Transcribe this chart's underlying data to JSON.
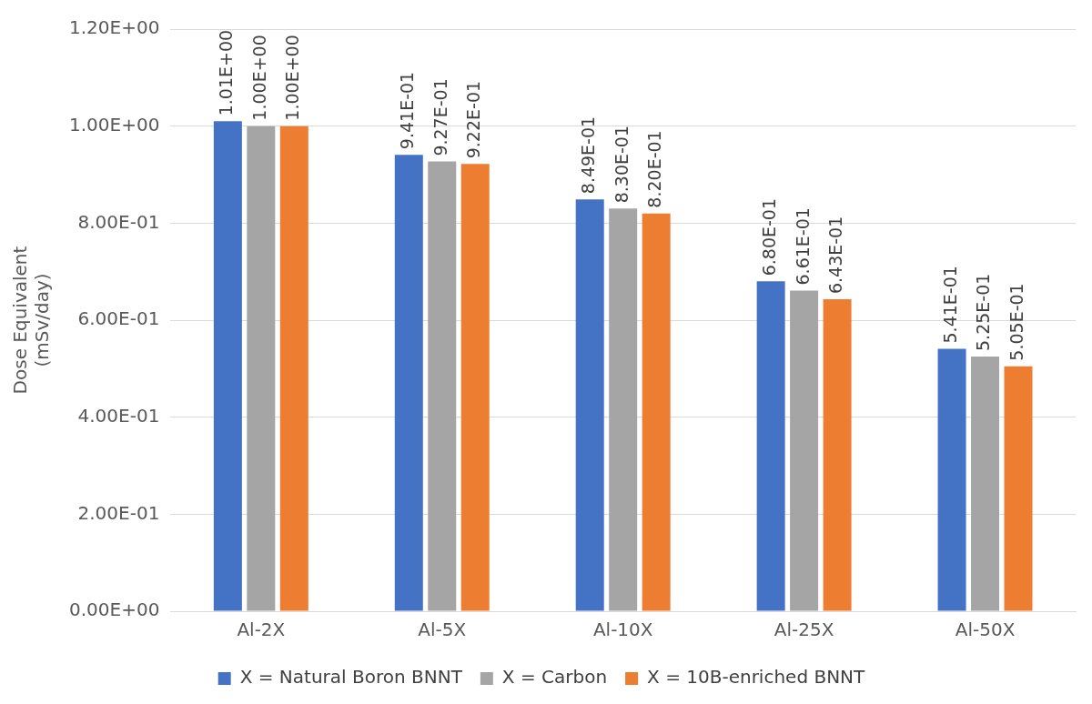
{
  "chart_data": {
    "type": "bar",
    "ylabel": "Dose Equivalent\n(mSv/day)",
    "categories": [
      "Al-2X",
      "Al-5X",
      "Al-10X",
      "Al-25X",
      "Al-50X"
    ],
    "series": [
      {
        "name": "X = Natural Boron BNNT",
        "color": "#4472c4",
        "values": [
          1.01,
          0.941,
          0.849,
          0.68,
          0.541
        ],
        "value_labels": [
          "1.01E+00",
          "9.41E-01",
          "8.49E-01",
          "6.80E-01",
          "5.41E-01"
        ]
      },
      {
        "name": "X = Carbon",
        "color": "#a5a5a5",
        "values": [
          1.0,
          0.927,
          0.83,
          0.661,
          0.525
        ],
        "value_labels": [
          "1.00E+00",
          "9.27E-01",
          "8.30E-01",
          "6.61E-01",
          "5.25E-01"
        ]
      },
      {
        "name": "X = 10B-enriched BNNT",
        "color": "#ed7d31",
        "values": [
          1.0,
          0.922,
          0.82,
          0.643,
          0.505
        ],
        "value_labels": [
          "1.00E+00",
          "9.22E-01",
          "8.20E-01",
          "6.43E-01",
          "5.05E-01"
        ]
      }
    ],
    "ylim": [
      0,
      1.2
    ],
    "yticks": [
      {
        "value": 0,
        "label": "0.00E+00"
      },
      {
        "value": 0.2,
        "label": "2.00E-01"
      },
      {
        "value": 0.4,
        "label": "4.00E-01"
      },
      {
        "value": 0.6,
        "label": "6.00E-01"
      },
      {
        "value": 0.8,
        "label": "8.00E-01"
      },
      {
        "value": 1.0,
        "label": "1.00E+00"
      },
      {
        "value": 1.2,
        "label": "1.20E+00"
      }
    ],
    "grid": "y",
    "legend": "bottom"
  }
}
